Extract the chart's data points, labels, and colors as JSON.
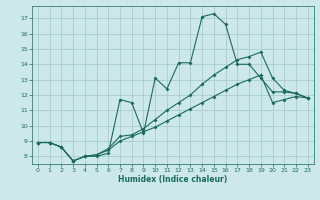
{
  "xlabel": "Humidex (Indice chaleur)",
  "ylabel": "",
  "bg_color": "#cce8e8",
  "grid_color": "#aacccc",
  "line_color": "#1a6b5a",
  "xlim": [
    -0.5,
    23.5
  ],
  "ylim": [
    7.5,
    17.8
  ],
  "xticks": [
    0,
    1,
    2,
    3,
    4,
    5,
    6,
    7,
    8,
    9,
    10,
    11,
    12,
    13,
    14,
    15,
    16,
    17,
    18,
    19,
    20,
    21,
    22,
    23
  ],
  "yticks": [
    8,
    9,
    10,
    11,
    12,
    13,
    14,
    15,
    16,
    17
  ],
  "line1_x": [
    0,
    1,
    2,
    3,
    4,
    5,
    6,
    7,
    8,
    9,
    10,
    11,
    12,
    13,
    14,
    15,
    16,
    17,
    18,
    19,
    20,
    21,
    22,
    23
  ],
  "line1_y": [
    8.9,
    8.9,
    8.6,
    7.7,
    8.0,
    8.0,
    8.2,
    11.7,
    11.5,
    9.5,
    13.1,
    12.4,
    14.1,
    14.1,
    17.1,
    17.3,
    16.6,
    14.0,
    14.0,
    13.1,
    12.2,
    12.2,
    12.1,
    11.8
  ],
  "line2_x": [
    0,
    1,
    2,
    3,
    4,
    5,
    6,
    7,
    8,
    9,
    10,
    11,
    12,
    13,
    14,
    15,
    16,
    17,
    18,
    19,
    20,
    21,
    22,
    23
  ],
  "line2_y": [
    8.9,
    8.9,
    8.6,
    7.7,
    8.0,
    8.1,
    8.5,
    9.3,
    9.4,
    9.8,
    10.4,
    11.0,
    11.5,
    12.0,
    12.7,
    13.3,
    13.8,
    14.3,
    14.5,
    14.8,
    13.1,
    12.3,
    12.1,
    11.8
  ],
  "line3_x": [
    0,
    1,
    2,
    3,
    4,
    5,
    6,
    7,
    8,
    9,
    10,
    11,
    12,
    13,
    14,
    15,
    16,
    17,
    18,
    19,
    20,
    21,
    22,
    23
  ],
  "line3_y": [
    8.9,
    8.9,
    8.6,
    7.7,
    8.0,
    8.1,
    8.4,
    9.0,
    9.3,
    9.6,
    9.9,
    10.3,
    10.7,
    11.1,
    11.5,
    11.9,
    12.3,
    12.7,
    13.0,
    13.3,
    11.5,
    11.7,
    11.9,
    11.8
  ]
}
